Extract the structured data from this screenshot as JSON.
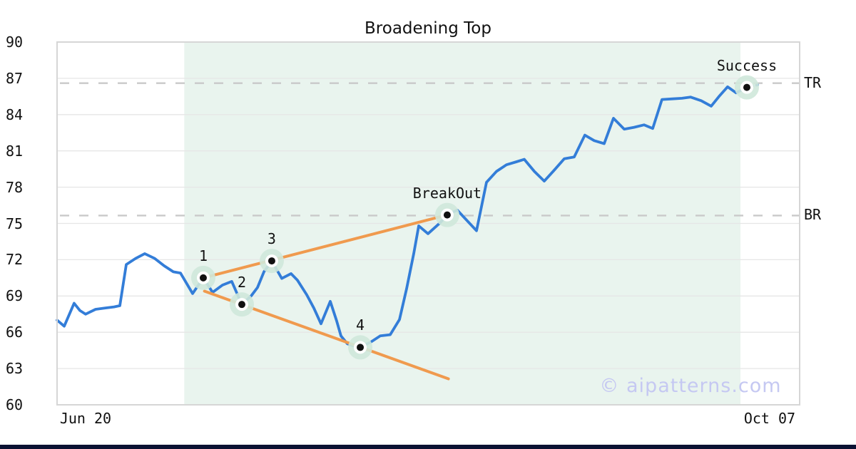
{
  "title": "Broadening Top",
  "watermark": "© aipatterns.com",
  "colors": {
    "price_line": "#337dd8",
    "trendline": "#f09a4e",
    "pattern_region": "#e9f4ee",
    "gridline": "#e6e6e6",
    "plot_border": "#d6d6d6",
    "dashed_level": "#c9c9c9",
    "marker_halo": "#cfe8da",
    "marker_ring": "#ffffff",
    "marker_dot": "#111111",
    "text": "#111111",
    "watermark": "#c5c8f2",
    "footer_bar": "#0b1233"
  },
  "chart_data": {
    "type": "line",
    "title": "Broadening Top",
    "xlabel": "",
    "ylabel": "",
    "ylim": [
      60,
      90
    ],
    "y_ticks": [
      60,
      63,
      66,
      69,
      72,
      75,
      78,
      81,
      84,
      87,
      90
    ],
    "x_ticks": [
      {
        "label": "Jun 20",
        "pos": 0.0384
      },
      {
        "label": "Oct 07",
        "pos": 0.9596
      }
    ],
    "grid": "horizontal",
    "legend": "none",
    "pattern_region": {
      "from": 0.1713,
      "to": 0.9203
    },
    "series": [
      {
        "name": "price",
        "x_unit": "fraction of plot width",
        "points": [
          [
            0.0,
            67.0
          ],
          [
            0.0096,
            66.5
          ],
          [
            0.023,
            68.4
          ],
          [
            0.0307,
            67.8
          ],
          [
            0.0384,
            67.5
          ],
          [
            0.0519,
            67.9
          ],
          [
            0.0644,
            68.0
          ],
          [
            0.0768,
            68.1
          ],
          [
            0.0845,
            68.2
          ],
          [
            0.0932,
            71.6
          ],
          [
            0.1057,
            72.1
          ],
          [
            0.1181,
            72.5
          ],
          [
            0.1316,
            72.1
          ],
          [
            0.1441,
            71.5
          ],
          [
            0.1566,
            71.0
          ],
          [
            0.1662,
            70.9
          ],
          [
            0.1825,
            69.2
          ],
          [
            0.1969,
            70.5
          ],
          [
            0.2094,
            69.3
          ],
          [
            0.2228,
            69.9
          ],
          [
            0.2353,
            70.2
          ],
          [
            0.2488,
            68.3
          ],
          [
            0.2613,
            69.0
          ],
          [
            0.2699,
            69.7
          ],
          [
            0.2786,
            71.0
          ],
          [
            0.2891,
            71.9
          ],
          [
            0.3026,
            70.45
          ],
          [
            0.3151,
            70.85
          ],
          [
            0.3237,
            70.3
          ],
          [
            0.3362,
            69.1
          ],
          [
            0.3458,
            68.0
          ],
          [
            0.3554,
            66.7
          ],
          [
            0.3679,
            68.55
          ],
          [
            0.3765,
            66.95
          ],
          [
            0.3823,
            65.7
          ],
          [
            0.3909,
            65.05
          ],
          [
            0.4006,
            64.85
          ],
          [
            0.4083,
            64.75
          ],
          [
            0.4227,
            65.2
          ],
          [
            0.4352,
            65.7
          ],
          [
            0.4486,
            65.8
          ],
          [
            0.4611,
            67.05
          ],
          [
            0.4707,
            69.6
          ],
          [
            0.4803,
            72.5
          ],
          [
            0.487,
            74.8
          ],
          [
            0.4995,
            74.15
          ],
          [
            0.5158,
            75.05
          ],
          [
            0.5254,
            75.7
          ],
          [
            0.5389,
            76.1
          ],
          [
            0.5648,
            74.4
          ],
          [
            0.5783,
            78.4
          ],
          [
            0.5917,
            79.3
          ],
          [
            0.6052,
            79.85
          ],
          [
            0.6186,
            80.1
          ],
          [
            0.6292,
            80.3
          ],
          [
            0.6427,
            79.3
          ],
          [
            0.6561,
            78.5
          ],
          [
            0.6695,
            79.4
          ],
          [
            0.683,
            80.35
          ],
          [
            0.6964,
            80.5
          ],
          [
            0.7108,
            82.3
          ],
          [
            0.7233,
            81.85
          ],
          [
            0.7368,
            81.6
          ],
          [
            0.7493,
            83.7
          ],
          [
            0.7637,
            82.8
          ],
          [
            0.7771,
            82.95
          ],
          [
            0.7906,
            83.15
          ],
          [
            0.8021,
            82.85
          ],
          [
            0.8146,
            85.25
          ],
          [
            0.829,
            85.3
          ],
          [
            0.8415,
            85.35
          ],
          [
            0.853,
            85.45
          ],
          [
            0.8674,
            85.15
          ],
          [
            0.8809,
            84.7
          ],
          [
            0.8914,
            85.5
          ],
          [
            0.903,
            86.3
          ],
          [
            0.9145,
            85.8
          ],
          [
            0.9289,
            86.25
          ]
        ]
      }
    ],
    "projection_dashed": [
      [
        0.9289,
        86.25
      ],
      [
        0.9433,
        86.45
      ]
    ],
    "trendlines": [
      {
        "name": "resistance",
        "from": [
          0.1969,
          70.5
        ],
        "to": [
          0.5254,
          75.7
        ]
      },
      {
        "name": "support",
        "from": [
          0.1985,
          69.4
        ],
        "to": [
          0.527,
          62.15
        ]
      }
    ],
    "levels": [
      {
        "label": "TR",
        "value": 86.6
      },
      {
        "label": "BR",
        "value": 75.65
      }
    ],
    "annotations": [
      {
        "label": "1",
        "x": 0.1969,
        "y": 70.5
      },
      {
        "label": "2",
        "x": 0.2488,
        "y": 68.3
      },
      {
        "label": "3",
        "x": 0.2891,
        "y": 71.9
      },
      {
        "label": "4",
        "x": 0.4083,
        "y": 64.75
      },
      {
        "label": "BreakOut",
        "x": 0.5254,
        "y": 75.7
      },
      {
        "label": "Success",
        "x": 0.9289,
        "y": 86.25
      }
    ]
  }
}
